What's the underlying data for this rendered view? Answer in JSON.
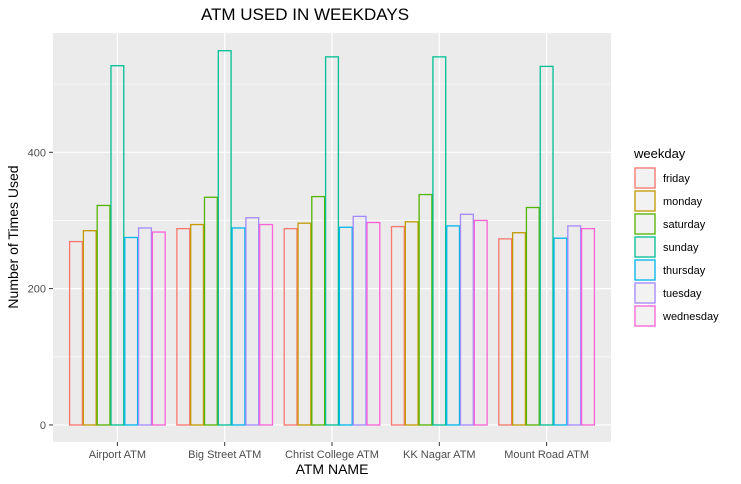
{
  "chart_data": {
    "type": "bar",
    "title": "ATM USED IN WEEKDAYS",
    "xlabel": "ATM NAME",
    "ylabel": "Number of Times Used",
    "categories": [
      "Airport ATM",
      "Big Street ATM",
      "Christ College ATM",
      "KK Nagar ATM",
      "Mount Road ATM"
    ],
    "ylim": [
      -25,
      575
    ],
    "yticks": [
      0,
      200,
      400
    ],
    "grid": true,
    "legend": {
      "title": "weekday",
      "position": "right"
    },
    "series": [
      {
        "name": "friday",
        "color": "#F8766D",
        "values": [
          269,
          288,
          288,
          291,
          273
        ]
      },
      {
        "name": "monday",
        "color": "#C49A00",
        "values": [
          285,
          294,
          296,
          298,
          282
        ]
      },
      {
        "name": "saturday",
        "color": "#53B400",
        "values": [
          322,
          334,
          335,
          338,
          319
        ]
      },
      {
        "name": "sunday",
        "color": "#00C094",
        "values": [
          527,
          549,
          540,
          540,
          526
        ]
      },
      {
        "name": "thursday",
        "color": "#00B6EB",
        "values": [
          275,
          289,
          290,
          292,
          274
        ]
      },
      {
        "name": "tuesday",
        "color": "#A58AFF",
        "values": [
          289,
          304,
          306,
          309,
          292
        ]
      },
      {
        "name": "wednesday",
        "color": "#FB61D7",
        "values": [
          283,
          294,
          297,
          300,
          288
        ]
      }
    ]
  }
}
